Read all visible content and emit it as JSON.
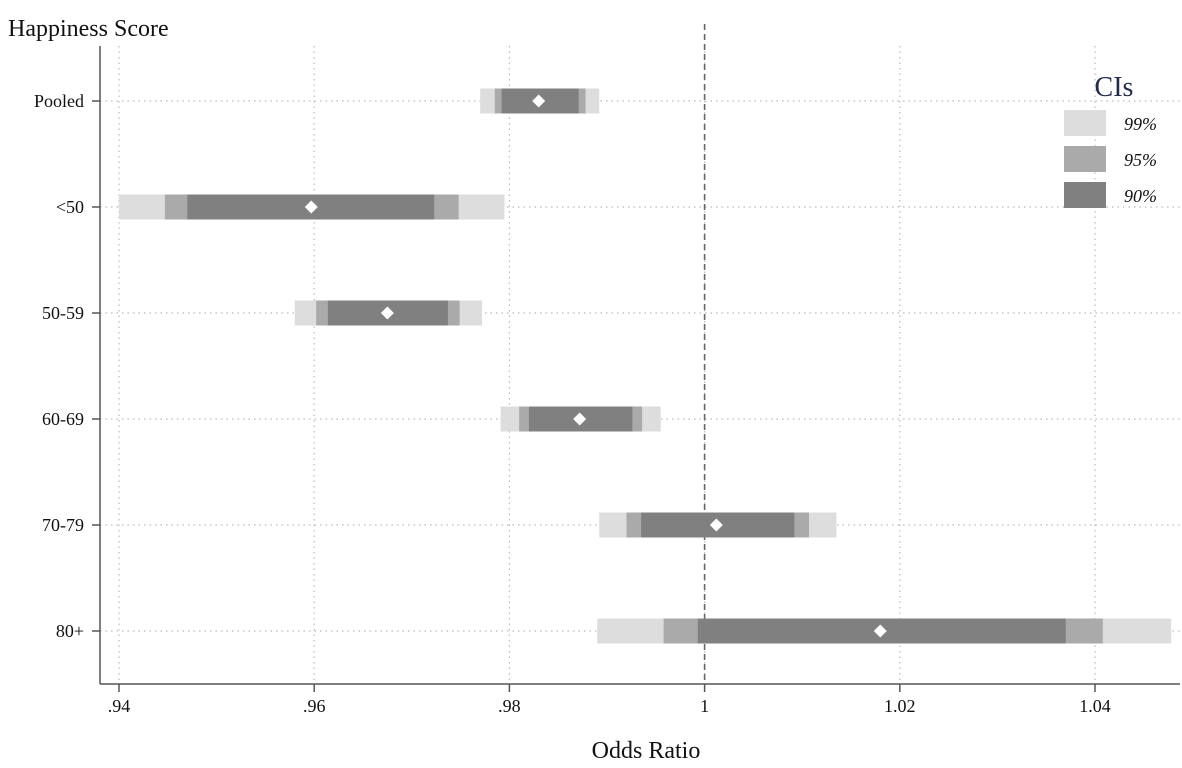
{
  "chart_data": {
    "type": "coefficient-ci-plot",
    "title": "Happiness Score",
    "xlabel": "Odds Ratio",
    "xlim": [
      0.938,
      1.048
    ],
    "x_ticks": [
      0.94,
      0.96,
      0.98,
      1.0,
      1.02,
      1.04
    ],
    "x_tick_labels": [
      ".94",
      ".96",
      ".98",
      "1",
      "1.02",
      "1.04"
    ],
    "reference_line": 1.0,
    "grid": true,
    "legend": {
      "title": "CIs",
      "position": "top-right",
      "items": [
        {
          "label": "99%",
          "color": "#dddddd"
        },
        {
          "label": "95%",
          "color": "#aaaaaa"
        },
        {
          "label": "90%",
          "color": "#808080"
        }
      ]
    },
    "categories": [
      "Pooled",
      "<50",
      "50-59",
      "60-69",
      "70-79",
      "80+"
    ],
    "estimates": [
      {
        "label": "Pooled",
        "point": 0.983,
        "ci99": [
          0.977,
          0.9892
        ],
        "ci95": [
          0.9785,
          0.9878
        ],
        "ci90": [
          0.9792,
          0.9871
        ]
      },
      {
        "label": "<50",
        "point": 0.9597,
        "ci99": [
          0.94,
          0.9795
        ],
        "ci95": [
          0.9447,
          0.9748
        ],
        "ci90": [
          0.947,
          0.9723
        ]
      },
      {
        "label": "50-59",
        "point": 0.9675,
        "ci99": [
          0.958,
          0.9772
        ],
        "ci95": [
          0.9602,
          0.9749
        ],
        "ci90": [
          0.9614,
          0.9737
        ]
      },
      {
        "label": "60-69",
        "point": 0.9872,
        "ci99": [
          0.9791,
          0.9955
        ],
        "ci95": [
          0.981,
          0.9936
        ],
        "ci90": [
          0.982,
          0.9926
        ]
      },
      {
        "label": "70-79",
        "point": 1.0012,
        "ci99": [
          0.9892,
          1.0135
        ],
        "ci95": [
          0.992,
          1.0107
        ],
        "ci90": [
          0.9935,
          1.0092
        ]
      },
      {
        "label": "80+",
        "point": 1.018,
        "ci99": [
          0.989,
          1.0478
        ],
        "ci95": [
          0.9958,
          1.0408
        ],
        "ci90": [
          0.9993,
          1.037
        ]
      }
    ],
    "colors": {
      "ci99": "#dddddd",
      "ci95": "#aaaaaa",
      "ci90": "#808080",
      "point": "#ffffff",
      "grid": "#bbbbbb",
      "axis": "#555555",
      "refline": "#666666"
    }
  }
}
